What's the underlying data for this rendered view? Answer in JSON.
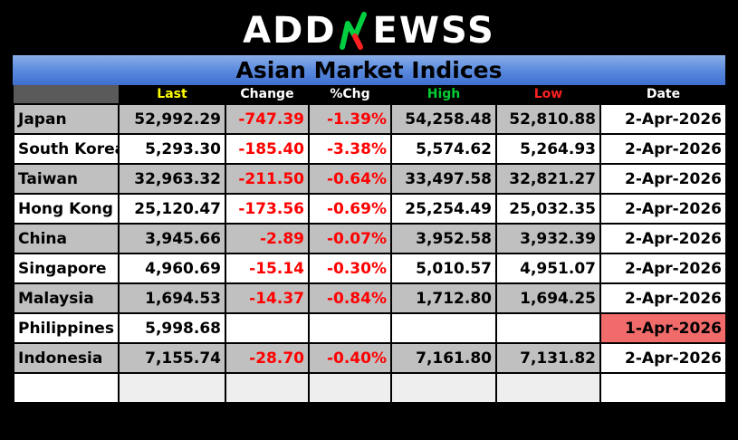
{
  "logo": {
    "part1": "ADD",
    "part2": "EWSS"
  },
  "title": "Asian Market Indices",
  "headers": [
    {
      "label": "",
      "color": "#ffffff"
    },
    {
      "label": "Last",
      "color": "#ffff00"
    },
    {
      "label": "Change",
      "color": "#ffffff"
    },
    {
      "label": "%Chg",
      "color": "#ffffff"
    },
    {
      "label": "High",
      "color": "#00cc33"
    },
    {
      "label": "Low",
      "color": "#ff2020"
    },
    {
      "label": "Date",
      "color": "#ffffff"
    }
  ],
  "rows": [
    {
      "name": "Japan",
      "last": "52,992.29",
      "change": "-747.39",
      "pct": "-1.39%",
      "high": "54,258.48",
      "low": "52,810.88",
      "date": "2-Apr-2026"
    },
    {
      "name": "South Korea",
      "last": "5,293.30",
      "change": "-185.40",
      "pct": "-3.38%",
      "high": "5,574.62",
      "low": "5,264.93",
      "date": "2-Apr-2026"
    },
    {
      "name": "Taiwan",
      "last": "32,963.32",
      "change": "-211.50",
      "pct": "-0.64%",
      "high": "33,497.58",
      "low": "32,821.27",
      "date": "2-Apr-2026"
    },
    {
      "name": "Hong Kong",
      "last": "25,120.47",
      "change": "-173.56",
      "pct": "-0.69%",
      "high": "25,254.49",
      "low": "25,032.35",
      "date": "2-Apr-2026"
    },
    {
      "name": "China",
      "last": "3,945.66",
      "change": "-2.89",
      "pct": "-0.07%",
      "high": "3,952.58",
      "low": "3,932.39",
      "date": "2-Apr-2026"
    },
    {
      "name": "Singapore",
      "last": "4,960.69",
      "change": "-15.14",
      "pct": "-0.30%",
      "high": "5,010.57",
      "low": "4,951.07",
      "date": "2-Apr-2026"
    },
    {
      "name": "Malaysia",
      "last": "1,694.53",
      "change": "-14.37",
      "pct": "-0.84%",
      "high": "1,712.80",
      "low": "1,694.25",
      "date": "2-Apr-2026"
    },
    {
      "name": "Philippines",
      "last": "5,998.68",
      "change": "",
      "pct": "",
      "high": "",
      "low": "",
      "date": "1-Apr-2026"
    },
    {
      "name": "Indonesia",
      "last": "7,155.74",
      "change": "-28.70",
      "pct": "-0.40%",
      "high": "7,161.80",
      "low": "7,131.82",
      "date": "2-Apr-2026"
    },
    {
      "name": "",
      "last": "",
      "change": "",
      "pct": "",
      "high": "",
      "low": "",
      "date": ""
    }
  ],
  "colors": {
    "negative": "#ff0000",
    "row_gray": "#c0c0c0",
    "stale_date": "#f26b6b",
    "title_bar": "#5f8ee0"
  }
}
